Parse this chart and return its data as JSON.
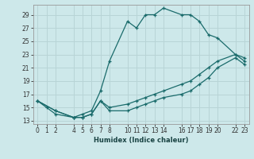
{
  "title": "",
  "xlabel": "Humidex (Indice chaleur)",
  "background_color": "#cde8ea",
  "grid_color": "#b8d4d6",
  "line_color": "#1a6b6b",
  "xlim": [
    -0.5,
    23.5
  ],
  "ylim": [
    12.5,
    30.5
  ],
  "xticks": [
    0,
    1,
    2,
    4,
    5,
    6,
    7,
    8,
    10,
    11,
    12,
    13,
    14,
    16,
    17,
    18,
    19,
    20,
    22,
    23
  ],
  "yticks": [
    13,
    15,
    17,
    19,
    21,
    23,
    25,
    27,
    29
  ],
  "lines": [
    {
      "x": [
        0,
        1,
        2,
        4,
        5,
        6,
        7,
        8,
        10,
        11,
        12,
        13,
        14,
        16,
        17,
        18,
        19,
        20,
        22,
        23
      ],
      "y": [
        16,
        15,
        14,
        13.5,
        14,
        14.5,
        17.5,
        22,
        28,
        27,
        29,
        29,
        30,
        29,
        29,
        28,
        26,
        25.5,
        23,
        22.5
      ]
    },
    {
      "x": [
        0,
        2,
        4,
        5,
        6,
        7,
        8,
        10,
        11,
        12,
        13,
        14,
        16,
        17,
        18,
        19,
        20,
        22,
        23
      ],
      "y": [
        16,
        14.5,
        13.5,
        13.5,
        14,
        16,
        15,
        15.5,
        16,
        16.5,
        17,
        17.5,
        18.5,
        19,
        20,
        21,
        22,
        23,
        22
      ]
    },
    {
      "x": [
        0,
        2,
        4,
        5,
        6,
        7,
        8,
        10,
        11,
        12,
        13,
        14,
        16,
        17,
        18,
        19,
        20,
        22,
        23
      ],
      "y": [
        16,
        14.5,
        13.5,
        13.5,
        14,
        16,
        14.5,
        14.5,
        15,
        15.5,
        16,
        16.5,
        17,
        17.5,
        18.5,
        19.5,
        21,
        22.5,
        21.5
      ]
    }
  ]
}
